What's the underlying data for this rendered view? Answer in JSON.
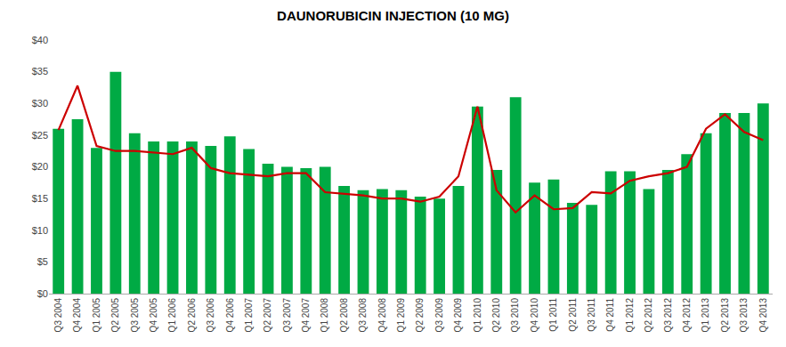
{
  "chart_data": {
    "type": "bar",
    "title": "DAUNORUBICIN INJECTION (10 MG)",
    "categories": [
      "Q3 2004",
      "Q4 2004",
      "Q1 2005",
      "Q2 2005",
      "Q3 2005",
      "Q4 2005",
      "Q1 2006",
      "Q2 2006",
      "Q3 2006",
      "Q4 2006",
      "Q1 2007",
      "Q2 2007",
      "Q3 2007",
      "Q4 2007",
      "Q1 2008",
      "Q2 2008",
      "Q3 2008",
      "Q4 2008",
      "Q1 2009",
      "Q2 2009",
      "Q3 2009",
      "Q4 2009",
      "Q1 2010",
      "Q2 2010",
      "Q3 2010",
      "Q4 2010",
      "Q1 2011",
      "Q2 2011",
      "Q3 2011",
      "Q4 2011",
      "Q1 2012",
      "Q2 2012",
      "Q3 2012",
      "Q4 2012",
      "Q1 2013",
      "Q2 2013",
      "Q3 2013",
      "Q4 2013"
    ],
    "series": [
      {
        "type": "bar",
        "color": "#00AA44",
        "values": [
          26.0,
          27.5,
          23.0,
          35.0,
          25.3,
          24.0,
          24.0,
          24.0,
          23.3,
          24.8,
          22.8,
          20.5,
          20.0,
          19.8,
          20.0,
          17.0,
          16.3,
          16.5,
          16.3,
          15.3,
          15.0,
          17.0,
          29.5,
          19.5,
          31.0,
          17.5,
          18.0,
          14.3,
          14.0,
          19.3,
          19.3,
          16.5,
          19.5,
          22.0,
          25.3,
          28.5,
          28.5,
          30.0
        ]
      },
      {
        "type": "line",
        "color": "#CC0000",
        "values": [
          25.8,
          32.8,
          23.3,
          22.5,
          22.5,
          22.3,
          22.0,
          23.0,
          19.8,
          19.0,
          18.8,
          18.5,
          19.0,
          19.0,
          16.0,
          15.8,
          15.5,
          15.0,
          15.0,
          14.5,
          15.3,
          18.5,
          29.5,
          16.3,
          12.8,
          15.5,
          13.3,
          13.5,
          16.0,
          15.8,
          17.8,
          18.5,
          19.0,
          20.0,
          26.0,
          28.3,
          25.5,
          24.2
        ]
      }
    ],
    "ylim": [
      0,
      40
    ],
    "yticks": [
      {
        "value": 0,
        "label": "$0"
      },
      {
        "value": 5,
        "label": "$5"
      },
      {
        "value": 10,
        "label": "$10"
      },
      {
        "value": 15,
        "label": "$15"
      },
      {
        "value": 20,
        "label": "$20"
      },
      {
        "value": 25,
        "label": "$25"
      },
      {
        "value": 30,
        "label": "$30"
      },
      {
        "value": 35,
        "label": "$35"
      },
      {
        "value": 40,
        "label": "$40"
      }
    ],
    "grid": false
  }
}
